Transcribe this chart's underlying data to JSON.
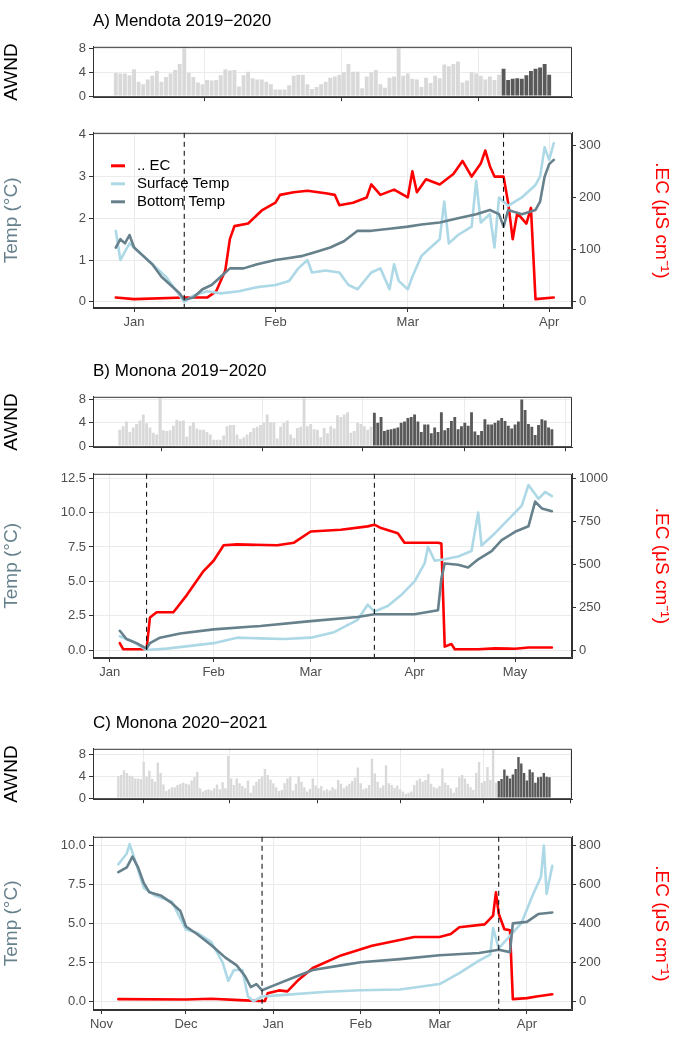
{
  "chart_data": [
    {
      "type": "bar",
      "title": "A) Mendota 2019−2020",
      "ylabel": "AWND",
      "xlim": [
        "2019-12-23",
        "2020-04-06"
      ],
      "xticks": [
        {
          "value": "2020-01-01",
          "label": null
        },
        {
          "value": "2020-02-01",
          "label": null
        },
        {
          "value": "2020-03-01",
          "label": null
        },
        {
          "value": "2020-04-01",
          "label": null
        }
      ],
      "ylim": [
        -0.2,
        8.3
      ],
      "yticks": [
        0,
        4,
        8
      ],
      "grid": true,
      "tick_labels": "y",
      "series": [
        {
          "color": "#d9d9d9",
          "x": [
            "2019-12-28",
            "2019-12-29",
            "2019-12-30",
            "2019-12-31",
            "2020-01-01",
            "2020-01-02",
            "2020-01-03",
            "2020-01-04",
            "2020-01-05",
            "2020-01-06",
            "2020-01-07",
            "2020-01-08",
            "2020-01-09",
            "2020-01-10",
            "2020-01-11",
            "2020-01-12",
            "2020-01-13",
            "2020-01-14",
            "2020-01-15",
            "2020-01-16",
            "2020-01-17",
            "2020-01-18",
            "2020-01-19",
            "2020-01-20",
            "2020-01-21",
            "2020-01-22",
            "2020-01-23",
            "2020-01-24",
            "2020-01-25",
            "2020-01-26",
            "2020-01-27",
            "2020-01-28",
            "2020-01-29",
            "2020-01-30",
            "2020-01-31",
            "2020-02-01",
            "2020-02-02",
            "2020-02-03",
            "2020-02-04",
            "2020-02-05",
            "2020-02-06",
            "2020-02-07",
            "2020-02-08",
            "2020-02-09",
            "2020-02-10",
            "2020-02-11",
            "2020-02-12",
            "2020-02-13",
            "2020-02-14",
            "2020-02-15",
            "2020-02-16",
            "2020-02-17",
            "2020-02-18",
            "2020-02-19",
            "2020-02-20",
            "2020-02-21",
            "2020-02-22",
            "2020-02-23",
            "2020-02-24",
            "2020-02-25",
            "2020-02-26",
            "2020-02-27",
            "2020-02-28",
            "2020-02-29",
            "2020-03-01",
            "2020-03-02",
            "2020-03-03",
            "2020-03-04",
            "2020-03-05",
            "2020-03-06",
            "2020-03-07",
            "2020-03-08",
            "2020-03-09",
            "2020-03-10",
            "2020-03-11",
            "2020-03-12",
            "2020-03-13",
            "2020-03-14",
            "2020-03-15",
            "2020-03-16",
            "2020-03-17",
            "2020-03-18",
            "2020-03-19",
            "2020-03-20",
            "2020-03-21"
          ],
          "values": [
            3.9,
            3.8,
            3.8,
            3.5,
            4.5,
            2.4,
            2.0,
            2.8,
            3.4,
            4.2,
            2.4,
            3.2,
            3.8,
            4.4,
            5.4,
            8.3,
            3.9,
            3.2,
            2.3,
            2.0,
            2.7,
            2.6,
            2.7,
            3.5,
            4.5,
            4.3,
            4.4,
            1.6,
            3.5,
            4.1,
            3.0,
            2.8,
            2.8,
            2.4,
            2.0,
            1.1,
            1.1,
            1.1,
            1.8,
            3.4,
            3.6,
            3.6,
            2.0,
            1.2,
            1.5,
            2.0,
            2.4,
            3.1,
            3.3,
            3.6,
            4.0,
            5.4,
            4.1,
            4.1,
            1.3,
            3.3,
            4.0,
            4.4,
            2.0,
            1.4,
            3.1,
            3.3,
            8.2,
            3.4,
            3.8,
            2.9,
            2.8,
            1.5,
            3.1,
            2.2,
            3.4,
            3.0,
            5.3,
            5.0,
            5.4,
            5.8,
            2.3,
            2.6,
            4.0,
            3.8,
            3.4,
            2.8,
            3.3,
            2.7,
            3.6
          ]
        },
        {
          "color": "#595959",
          "x": [
            "2020-03-22",
            "2020-03-23",
            "2020-03-24",
            "2020-03-25",
            "2020-03-26",
            "2020-03-27",
            "2020-03-28",
            "2020-03-29",
            "2020-03-30",
            "2020-03-31",
            "2020-04-01"
          ],
          "values": [
            4.6,
            2.7,
            2.9,
            3.0,
            2.9,
            3.5,
            4.2,
            4.6,
            4.8,
            5.4,
            3.6
          ]
        }
      ]
    },
    {
      "type": "line",
      "ylabel": "Temp (°C)",
      "y2label": ".EC (μS cm⁻¹)",
      "xlim": [
        "2019-12-23",
        "2020-04-06"
      ],
      "xticks": [
        {
          "value": "2020-01-01",
          "label": "Jan"
        },
        {
          "value": "2020-02-01",
          "label": "Feb"
        },
        {
          "value": "2020-03-01",
          "label": "Mar"
        },
        {
          "value": "2020-04-01",
          "label": "Apr"
        }
      ],
      "ylim": [
        -0.15,
        4.05
      ],
      "yticks": [
        0,
        1,
        2,
        3,
        4
      ],
      "y2lim": [
        -12,
        324
      ],
      "y2ticks": [
        0,
        100,
        200,
        300
      ],
      "grid": true,
      "legend": "top left",
      "ref_lines": [
        {
          "axis": "x",
          "value": "2020-01-12",
          "line_style": "dashed"
        },
        {
          "axis": "x",
          "value": "2020-03-22",
          "line_style": "dashed"
        }
      ],
      "series": [
        {
          "name": ".. EC",
          "color": "#ff0000",
          "axis": "y2",
          "x": [
            "2019-12-28",
            "2020-01-01",
            "2020-01-12",
            "2020-01-17",
            "2020-01-19",
            "2020-01-21",
            "2020-01-22",
            "2020-01-23",
            "2020-01-26",
            "2020-01-29",
            "2020-02-01",
            "2020-02-02",
            "2020-02-05",
            "2020-02-08",
            "2020-02-12",
            "2020-02-14",
            "2020-02-15",
            "2020-02-18",
            "2020-02-21",
            "2020-02-22",
            "2020-02-24",
            "2020-02-27",
            "2020-03-01",
            "2020-03-02",
            "2020-03-03",
            "2020-03-05",
            "2020-03-08",
            "2020-03-11",
            "2020-03-13",
            "2020-03-15",
            "2020-03-17",
            "2020-03-18",
            "2020-03-19",
            "2020-03-20",
            "2020-03-22",
            "2020-03-23",
            "2020-03-24",
            "2020-03-25",
            "2020-03-27",
            "2020-03-28",
            "2020-03-29",
            "2020-04-02"
          ],
          "values": [
            8,
            5,
            8,
            8,
            20,
            60,
            120,
            145,
            150,
            175,
            190,
            205,
            210,
            213,
            208,
            205,
            185,
            190,
            200,
            225,
            205,
            215,
            200,
            250,
            210,
            235,
            225,
            245,
            270,
            240,
            265,
            290,
            260,
            240,
            240,
            190,
            120,
            170,
            150,
            180,
            5,
            8
          ]
        },
        {
          "name": "Surface Temp",
          "color": "#add8e6",
          "x": [
            "2019-12-28",
            "2019-12-29",
            "2019-12-31",
            "2020-01-02",
            "2020-01-04",
            "2020-01-06",
            "2020-01-08",
            "2020-01-10",
            "2020-01-12",
            "2020-01-14",
            "2020-01-17",
            "2020-01-20",
            "2020-01-24",
            "2020-01-28",
            "2020-02-01",
            "2020-02-04",
            "2020-02-06",
            "2020-02-08",
            "2020-02-09",
            "2020-02-12",
            "2020-02-15",
            "2020-02-17",
            "2020-02-19",
            "2020-02-22",
            "2020-02-24",
            "2020-02-26",
            "2020-02-27",
            "2020-02-28",
            "2020-03-01",
            "2020-03-02",
            "2020-03-04",
            "2020-03-06",
            "2020-03-08",
            "2020-03-09",
            "2020-03-10",
            "2020-03-12",
            "2020-03-15",
            "2020-03-16",
            "2020-03-17",
            "2020-03-19",
            "2020-03-20",
            "2020-03-21",
            "2020-03-23",
            "2020-03-26",
            "2020-03-29",
            "2020-03-30",
            "2020-03-31",
            "2020-04-01",
            "2020-04-02"
          ],
          "values": [
            1.7,
            1.0,
            1.4,
            1.2,
            1.0,
            0.8,
            0.6,
            0.3,
            0.0,
            0.15,
            0.25,
            0.2,
            0.25,
            0.35,
            0.4,
            0.5,
            0.8,
            1.0,
            0.7,
            0.75,
            0.7,
            0.4,
            0.3,
            0.7,
            0.8,
            0.3,
            0.9,
            0.5,
            0.3,
            0.6,
            1.1,
            1.3,
            1.5,
            2.4,
            1.4,
            1.6,
            1.8,
            2.9,
            1.9,
            2.1,
            1.3,
            2.5,
            2.3,
            2.5,
            2.8,
            3.0,
            3.7,
            3.4,
            3.8
          ]
        },
        {
          "name": "Bottom Temp",
          "color": "#66818c",
          "x": [
            "2019-12-28",
            "2019-12-29",
            "2019-12-30",
            "2019-12-31",
            "2020-01-01",
            "2020-01-03",
            "2020-01-05",
            "2020-01-07",
            "2020-01-09",
            "2020-01-10",
            "2020-01-11",
            "2020-01-12",
            "2020-01-14",
            "2020-01-16",
            "2020-01-18",
            "2020-01-20",
            "2020-01-22",
            "2020-01-25",
            "2020-01-28",
            "2020-02-01",
            "2020-02-04",
            "2020-02-07",
            "2020-02-10",
            "2020-02-13",
            "2020-02-16",
            "2020-02-19",
            "2020-02-22",
            "2020-02-26",
            "2020-03-01",
            "2020-03-04",
            "2020-03-08",
            "2020-03-12",
            "2020-03-16",
            "2020-03-19",
            "2020-03-21",
            "2020-03-22",
            "2020-03-23",
            "2020-03-26",
            "2020-03-29",
            "2020-03-30",
            "2020-03-31",
            "2020-04-01",
            "2020-04-02"
          ],
          "values": [
            1.3,
            1.5,
            1.4,
            1.6,
            1.3,
            1.1,
            0.9,
            0.6,
            0.4,
            0.3,
            0.2,
            0.05,
            0.1,
            0.3,
            0.4,
            0.6,
            0.8,
            0.8,
            0.9,
            1.0,
            1.05,
            1.1,
            1.2,
            1.3,
            1.45,
            1.7,
            1.7,
            1.75,
            1.8,
            1.85,
            1.9,
            2.0,
            2.1,
            2.2,
            2.1,
            1.8,
            2.2,
            2.1,
            2.2,
            2.4,
            3.0,
            3.3,
            3.4
          ]
        }
      ]
    },
    {
      "type": "bar",
      "title": "B) Monona 2019−2020",
      "ylabel": "AWND",
      "xlim": [
        "2019-12-27",
        "2020-05-18"
      ],
      "xticks": [
        {
          "value": "2020-01-01",
          "label": null
        },
        {
          "value": "2020-02-01",
          "label": null
        },
        {
          "value": "2020-03-01",
          "label": null
        },
        {
          "value": "2020-04-01",
          "label": null
        },
        {
          "value": "2020-05-01",
          "label": null
        }
      ],
      "ylim": [
        -0.2,
        8.45
      ],
      "yticks": [
        0,
        4,
        8
      ],
      "grid": true,
      "tick_labels": "y",
      "series": [
        {
          "color": "#d9d9d9",
          "x": [
            "2020-01-04",
            "2020-01-05",
            "2020-01-06",
            "2020-01-07",
            "2020-01-08",
            "2020-01-09",
            "2020-01-10",
            "2020-01-11",
            "2020-01-12",
            "2020-01-13",
            "2020-01-14",
            "2020-01-15",
            "2020-01-16",
            "2020-01-17",
            "2020-01-18",
            "2020-01-19",
            "2020-01-20",
            "2020-01-21",
            "2020-01-22",
            "2020-01-23",
            "2020-01-24",
            "2020-01-25",
            "2020-01-26",
            "2020-01-27",
            "2020-01-28",
            "2020-01-29",
            "2020-01-30",
            "2020-01-31",
            "2020-02-01",
            "2020-02-02",
            "2020-02-03",
            "2020-02-04",
            "2020-02-05",
            "2020-02-06",
            "2020-02-07",
            "2020-02-08",
            "2020-02-09",
            "2020-02-10",
            "2020-02-11",
            "2020-02-12",
            "2020-02-13",
            "2020-02-14",
            "2020-02-15",
            "2020-02-16",
            "2020-02-17",
            "2020-02-18",
            "2020-02-19",
            "2020-02-20",
            "2020-02-21",
            "2020-02-22",
            "2020-02-23",
            "2020-02-24",
            "2020-02-25",
            "2020-02-26",
            "2020-02-27",
            "2020-02-28",
            "2020-02-29",
            "2020-03-01",
            "2020-03-02",
            "2020-03-03",
            "2020-03-04",
            "2020-03-05",
            "2020-03-06",
            "2020-03-07",
            "2020-03-08",
            "2020-03-09",
            "2020-03-10",
            "2020-03-11",
            "2020-03-12",
            "2020-03-13",
            "2020-03-14",
            "2020-03-15",
            "2020-03-16",
            "2020-03-17",
            "2020-03-18",
            "2020-03-19"
          ],
          "values": [
            2.8,
            3.4,
            4.2,
            2.4,
            3.2,
            3.8,
            4.4,
            5.4,
            3.9,
            3.2,
            2.3,
            2.0,
            8.3,
            2.7,
            2.6,
            2.7,
            3.5,
            4.5,
            4.3,
            4.4,
            1.6,
            3.5,
            4.1,
            3.0,
            2.8,
            2.8,
            2.4,
            2.0,
            1.1,
            1.1,
            1.1,
            1.8,
            3.4,
            3.6,
            3.6,
            2.0,
            1.2,
            1.5,
            2.0,
            2.4,
            3.1,
            3.3,
            3.6,
            4.0,
            5.4,
            4.1,
            4.1,
            1.3,
            3.3,
            4.0,
            4.4,
            2.0,
            1.4,
            3.1,
            3.3,
            8.2,
            3.4,
            3.8,
            2.9,
            2.8,
            1.5,
            3.1,
            2.2,
            3.4,
            3.0,
            5.3,
            5.0,
            5.4,
            5.8,
            2.3,
            2.6,
            4.0,
            3.8,
            3.4,
            2.8,
            3.3
          ]
        },
        {
          "color": "#595959",
          "x": [
            "2020-03-20",
            "2020-03-21",
            "2020-03-22",
            "2020-03-23",
            "2020-03-24",
            "2020-03-25",
            "2020-03-26",
            "2020-03-27",
            "2020-03-28",
            "2020-03-29",
            "2020-03-30",
            "2020-03-31",
            "2020-04-01",
            "2020-04-02",
            "2020-04-03",
            "2020-04-04",
            "2020-04-05",
            "2020-04-06",
            "2020-04-07",
            "2020-04-08",
            "2020-04-09",
            "2020-04-10",
            "2020-04-11",
            "2020-04-12",
            "2020-04-13",
            "2020-04-14",
            "2020-04-15",
            "2020-04-16",
            "2020-04-17",
            "2020-04-18",
            "2020-04-19",
            "2020-04-20",
            "2020-04-21",
            "2020-04-22",
            "2020-04-23",
            "2020-04-24",
            "2020-04-25",
            "2020-04-26",
            "2020-04-27",
            "2020-04-28",
            "2020-04-29",
            "2020-04-30",
            "2020-05-01",
            "2020-05-02",
            "2020-05-03",
            "2020-05-04",
            "2020-05-05",
            "2020-05-06",
            "2020-05-07",
            "2020-05-08",
            "2020-05-09",
            "2020-05-10",
            "2020-05-11",
            "2020-05-12"
          ],
          "values": [
            5.7,
            4.0,
            5.0,
            2.6,
            2.8,
            2.9,
            3.0,
            3.2,
            4.0,
            4.2,
            4.8,
            5.0,
            5.4,
            4.2,
            2.4,
            3.7,
            3.7,
            2.2,
            3.2,
            2.4,
            5.8,
            2.7,
            3.1,
            4.3,
            5.0,
            2.9,
            3.4,
            4.0,
            3.5,
            5.8,
            2.5,
            1.9,
            2.6,
            4.6,
            3.7,
            3.7,
            4.0,
            4.4,
            4.8,
            4.3,
            3.5,
            3.0,
            3.7,
            4.2,
            8.0,
            6.2,
            3.8,
            3.3,
            1.9,
            3.6,
            4.6,
            4.4,
            3.2,
            2.9
          ]
        }
      ]
    },
    {
      "type": "line",
      "ylabel": "Temp (°C)",
      "y2label": ".EC (μS cm⁻¹)",
      "xlim": [
        "2019-12-27",
        "2020-05-18"
      ],
      "xticks": [
        {
          "value": "2020-01-01",
          "label": "Jan"
        },
        {
          "value": "2020-02-01",
          "label": "Feb"
        },
        {
          "value": "2020-03-01",
          "label": "Mar"
        },
        {
          "value": "2020-04-01",
          "label": "Apr"
        },
        {
          "value": "2020-05-01",
          "label": "May"
        }
      ],
      "ylim": [
        -0.58,
        12.82
      ],
      "yticks": [
        {
          "value": 0,
          "label": "0.0"
        },
        {
          "value": 2.5,
          "label": "2.5"
        },
        {
          "value": 5,
          "label": "5.0"
        },
        {
          "value": 7.5,
          "label": "7.5"
        },
        {
          "value": 10,
          "label": "10.0"
        },
        {
          "value": 12.5,
          "label": "12.5"
        }
      ],
      "y2lim": [
        -46,
        1026
      ],
      "y2ticks": [
        0,
        250,
        500,
        750,
        1000
      ],
      "grid": true,
      "ref_lines": [
        {
          "axis": "x",
          "value": "2020-01-12",
          "line_style": "dashed"
        },
        {
          "axis": "x",
          "value": "2020-03-20",
          "line_style": "dashed"
        }
      ],
      "series": [
        {
          "color": "#ff0000",
          "axis": "y2",
          "x": [
            "2020-01-04",
            "2020-01-05",
            "2020-01-12",
            "2020-01-13",
            "2020-01-15",
            "2020-01-20",
            "2020-01-24",
            "2020-01-29",
            "2020-02-01",
            "2020-02-04",
            "2020-02-08",
            "2020-02-20",
            "2020-02-25",
            "2020-03-01",
            "2020-03-10",
            "2020-03-18",
            "2020-03-20",
            "2020-03-22",
            "2020-03-27",
            "2020-03-29",
            "2020-04-08",
            "2020-04-09",
            "2020-04-10",
            "2020-04-12",
            "2020-04-13",
            "2020-04-20",
            "2020-04-25",
            "2020-05-01",
            "2020-05-05",
            "2020-05-12"
          ],
          "values": [
            40,
            5,
            5,
            190,
            220,
            220,
            320,
            460,
            520,
            610,
            615,
            610,
            625,
            690,
            700,
            720,
            730,
            710,
            680,
            625,
            625,
            620,
            20,
            35,
            5,
            5,
            10,
            8,
            15,
            15
          ]
        },
        {
          "color": "#add8e6",
          "x": [
            "2020-01-04",
            "2020-01-08",
            "2020-01-12",
            "2020-01-18",
            "2020-01-25",
            "2020-02-01",
            "2020-02-08",
            "2020-02-15",
            "2020-02-22",
            "2020-03-01",
            "2020-03-08",
            "2020-03-15",
            "2020-03-18",
            "2020-03-20",
            "2020-03-24",
            "2020-03-28",
            "2020-04-01",
            "2020-04-04",
            "2020-04-05",
            "2020-04-07",
            "2020-04-10",
            "2020-04-14",
            "2020-04-18",
            "2020-04-20",
            "2020-04-21",
            "2020-04-25",
            "2020-04-29",
            "2020-05-03",
            "2020-05-05",
            "2020-05-08",
            "2020-05-10",
            "2020-05-12"
          ],
          "values": [
            1.0,
            0.6,
            0.0,
            0.1,
            0.3,
            0.5,
            0.9,
            0.85,
            0.8,
            0.9,
            1.3,
            2.2,
            3.3,
            2.8,
            3.2,
            4.0,
            5.0,
            6.3,
            7.5,
            6.5,
            6.6,
            6.8,
            7.2,
            10.0,
            7.6,
            8.5,
            9.5,
            10.5,
            12.0,
            11.0,
            11.5,
            11.2
          ]
        },
        {
          "color": "#66818c",
          "x": [
            "2020-01-04",
            "2020-01-06",
            "2020-01-09",
            "2020-01-12",
            "2020-01-13",
            "2020-01-16",
            "2020-01-22",
            "2020-02-01",
            "2020-02-15",
            "2020-03-01",
            "2020-03-15",
            "2020-03-20",
            "2020-04-01",
            "2020-04-08",
            "2020-04-09",
            "2020-04-10",
            "2020-04-14",
            "2020-04-17",
            "2020-04-20",
            "2020-04-24",
            "2020-04-27",
            "2020-05-01",
            "2020-05-05",
            "2020-05-07",
            "2020-05-09",
            "2020-05-12"
          ],
          "values": [
            1.4,
            0.8,
            0.5,
            0.1,
            0.5,
            0.9,
            1.2,
            1.5,
            1.75,
            2.1,
            2.4,
            2.6,
            2.6,
            2.9,
            5.2,
            6.3,
            6.2,
            6.0,
            6.6,
            7.2,
            8.0,
            8.6,
            9.0,
            10.8,
            10.3,
            10.1
          ]
        }
      ]
    },
    {
      "type": "bar",
      "title": "C) Monona 2020−2021",
      "ylabel": "AWND",
      "xlim": [
        "2020-10-29",
        "2021-04-17"
      ],
      "xticks": [
        {
          "value": "2020-11-01",
          "label": null
        },
        {
          "value": "2020-12-01",
          "label": null
        },
        {
          "value": "2021-01-01",
          "label": null
        },
        {
          "value": "2021-02-01",
          "label": null
        },
        {
          "value": "2021-03-01",
          "label": null
        },
        {
          "value": "2021-04-01",
          "label": null
        }
      ],
      "ylim": [
        -0.2,
        9.0
      ],
      "yticks": [
        0,
        4,
        8
      ],
      "grid": true,
      "tick_labels": "y",
      "series": [
        {
          "color": "#d9d9d9",
          "x": [
            "2020-11-07",
            "2020-11-08",
            "2020-11-09",
            "2020-11-10",
            "2020-11-11",
            "2020-11-12",
            "2020-11-13",
            "2020-11-14",
            "2020-11-15",
            "2020-11-16",
            "2020-11-17",
            "2020-11-18",
            "2020-11-19",
            "2020-11-20",
            "2020-11-21",
            "2020-11-22",
            "2020-11-23",
            "2020-11-24",
            "2020-11-25",
            "2020-11-26",
            "2020-11-27",
            "2020-11-28",
            "2020-11-29",
            "2020-11-30",
            "2020-12-01",
            "2020-12-02",
            "2020-12-03",
            "2020-12-04",
            "2020-12-05",
            "2020-12-06",
            "2020-12-07",
            "2020-12-08",
            "2020-12-09",
            "2020-12-10",
            "2020-12-11",
            "2020-12-12",
            "2020-12-13",
            "2020-12-14",
            "2020-12-15",
            "2020-12-16",
            "2020-12-17",
            "2020-12-18",
            "2020-12-19",
            "2020-12-20",
            "2020-12-21",
            "2020-12-22",
            "2020-12-23",
            "2020-12-24",
            "2020-12-25",
            "2020-12-26",
            "2020-12-27",
            "2020-12-28",
            "2020-12-29",
            "2020-12-30",
            "2020-12-31",
            "2021-01-01",
            "2021-01-02",
            "2021-01-03",
            "2021-01-04",
            "2021-01-05",
            "2021-01-06",
            "2021-01-07",
            "2021-01-08",
            "2021-01-09",
            "2021-01-10",
            "2021-01-11",
            "2021-01-12",
            "2021-01-13",
            "2021-01-14",
            "2021-01-15",
            "2021-01-16",
            "2021-01-17",
            "2021-01-18",
            "2021-01-19",
            "2021-01-20",
            "2021-01-21",
            "2021-01-22",
            "2021-01-23",
            "2021-01-24",
            "2021-01-25",
            "2021-01-26",
            "2021-01-27",
            "2021-01-28",
            "2021-01-29",
            "2021-01-30",
            "2021-01-31",
            "2021-02-01",
            "2021-02-02",
            "2021-02-03",
            "2021-02-04",
            "2021-02-05",
            "2021-02-06",
            "2021-02-07",
            "2021-02-08",
            "2021-02-09",
            "2021-02-10",
            "2021-02-11",
            "2021-02-12",
            "2021-02-13",
            "2021-02-14",
            "2021-02-15",
            "2021-02-16",
            "2021-02-17",
            "2021-02-18",
            "2021-02-19",
            "2021-02-20",
            "2021-02-21",
            "2021-02-22",
            "2021-02-23",
            "2021-02-24",
            "2021-02-25",
            "2021-02-26",
            "2021-02-27",
            "2021-02-28",
            "2021-03-01",
            "2021-03-02",
            "2021-03-03",
            "2021-03-04",
            "2021-03-05",
            "2021-03-06",
            "2021-03-07",
            "2021-03-08",
            "2021-03-09",
            "2021-03-10",
            "2021-03-11",
            "2021-03-12",
            "2021-03-13",
            "2021-03-14",
            "2021-03-15",
            "2021-03-16",
            "2021-03-17",
            "2021-03-18",
            "2021-03-19",
            "2021-03-20",
            "2021-03-21"
          ],
          "values": [
            4.0,
            4.2,
            5.1,
            4.6,
            4.1,
            4.0,
            3.6,
            3.6,
            3.5,
            6.6,
            3.9,
            5.0,
            3.5,
            3.0,
            6.5,
            4.6,
            2.5,
            1.3,
            1.6,
            2.0,
            2.0,
            2.4,
            2.6,
            2.8,
            2.6,
            2.5,
            3.2,
            3.8,
            4.8,
            1.8,
            1.2,
            1.5,
            1.6,
            1.4,
            1.8,
            2.5,
            1.6,
            2.9,
            1.8,
            7.7,
            3.6,
            2.4,
            3.6,
            2.7,
            2.2,
            1.8,
            3.2,
            1.0,
            2.3,
            3.0,
            3.5,
            4.0,
            5.3,
            4.2,
            3.4,
            2.7,
            2.0,
            1.3,
            1.5,
            2.7,
            3.6,
            3.9,
            1.4,
            2.6,
            4.0,
            3.0,
            2.0,
            1.2,
            1.7,
            3.6,
            2.3,
            1.8,
            2.2,
            1.4,
            1.6,
            1.4,
            2.0,
            1.6,
            3.3,
            2.6,
            1.8,
            2.2,
            2.6,
            3.1,
            3.7,
            5.6,
            2.7,
            1.6,
            1.8,
            2.4,
            7.2,
            4.5,
            3.0,
            1.9,
            2.3,
            6.0,
            2.7,
            2.4,
            1.9,
            2.3,
            1.6,
            1.2,
            0.8,
            1.0,
            1.2,
            2.4,
            3.2,
            3.6,
            3.0,
            3.3,
            4.4,
            2.6,
            2.0,
            1.8,
            2.2,
            5.4,
            2.8,
            2.4,
            1.8,
            1.0,
            2.0,
            3.8,
            4.2,
            3.6,
            2.6,
            2.0,
            1.5,
            4.6,
            6.6,
            2.8,
            3.1,
            5.7,
            3.3,
            8.8,
            2.8
          ]
        },
        {
          "color": "#595959",
          "x": [
            "2021-03-22",
            "2021-03-23",
            "2021-03-24",
            "2021-03-25",
            "2021-03-26",
            "2021-03-27",
            "2021-03-28",
            "2021-03-29",
            "2021-03-30",
            "2021-03-31",
            "2021-04-01",
            "2021-04-02",
            "2021-04-03",
            "2021-04-04",
            "2021-04-05",
            "2021-04-06",
            "2021-04-07",
            "2021-04-08",
            "2021-04-09"
          ],
          "values": [
            3.1,
            3.5,
            5.2,
            4.1,
            3.6,
            4.3,
            5.3,
            7.5,
            6.3,
            4.6,
            3.2,
            5.2,
            4.7,
            2.8,
            3.8,
            3.9,
            4.6,
            3.9,
            3.8
          ]
        }
      ]
    },
    {
      "type": "line",
      "ylabel": "Temp (°C)",
      "y2label": ".EC (μS cm⁻¹)",
      "xlim": [
        "2020-10-29",
        "2021-04-17"
      ],
      "xticks": [
        {
          "value": "2020-11-01",
          "label": "Nov"
        },
        {
          "value": "2020-12-01",
          "label": "Dec"
        },
        {
          "value": "2021-01-01",
          "label": "Jan"
        },
        {
          "value": "2021-02-01",
          "label": "Feb"
        },
        {
          "value": "2021-03-01",
          "label": "Mar"
        },
        {
          "value": "2021-04-01",
          "label": "Apr"
        }
      ],
      "ylim": [
        -0.57,
        10.57
      ],
      "yticks": [
        {
          "value": 0,
          "label": "0.0"
        },
        {
          "value": 2.5,
          "label": "2.5"
        },
        {
          "value": 5,
          "label": "5.0"
        },
        {
          "value": 7.5,
          "label": "7.5"
        },
        {
          "value": 10,
          "label": "10.0"
        }
      ],
      "y2lim": [
        -46,
        846
      ],
      "y2ticks": [
        0,
        200,
        400,
        600,
        800
      ],
      "grid": true,
      "ref_lines": [
        {
          "axis": "x",
          "value": "2020-12-28",
          "line_style": "dashed"
        },
        {
          "axis": "x",
          "value": "2021-03-22",
          "line_style": "dashed"
        }
      ],
      "series": [
        {
          "color": "#ff0000",
          "axis": "y2",
          "x": [
            "2020-11-07",
            "2020-12-01",
            "2020-12-10",
            "2020-12-20",
            "2020-12-27",
            "2020-12-29",
            "2020-12-30",
            "2021-01-03",
            "2021-01-06",
            "2021-01-10",
            "2021-01-15",
            "2021-01-25",
            "2021-02-05",
            "2021-02-20",
            "2021-03-01",
            "2021-03-05",
            "2021-03-08",
            "2021-03-17",
            "2021-03-20",
            "2021-03-21",
            "2021-03-22",
            "2021-03-24",
            "2021-03-26",
            "2021-03-27",
            "2021-04-01",
            "2021-04-05",
            "2021-04-10"
          ],
          "values": [
            10,
            8,
            12,
            5,
            0,
            0,
            40,
            55,
            50,
            110,
            170,
            235,
            285,
            330,
            330,
            345,
            380,
            395,
            440,
            560,
            450,
            370,
            365,
            10,
            15,
            25,
            35
          ]
        },
        {
          "color": "#add8e6",
          "x": [
            "2020-11-07",
            "2020-11-10",
            "2020-11-11",
            "2020-11-13",
            "2020-11-16",
            "2020-11-20",
            "2020-11-26",
            "2020-12-01",
            "2020-12-05",
            "2020-12-10",
            "2020-12-14",
            "2020-12-16",
            "2020-12-18",
            "2020-12-21",
            "2020-12-23",
            "2020-12-25",
            "2020-12-28",
            "2021-01-05",
            "2021-01-20",
            "2021-02-01",
            "2021-02-15",
            "2021-03-01",
            "2021-03-08",
            "2021-03-15",
            "2021-03-19",
            "2021-03-20",
            "2021-03-22",
            "2021-03-27",
            "2021-03-30",
            "2021-04-03",
            "2021-04-06",
            "2021-04-07",
            "2021-04-08",
            "2021-04-10"
          ],
          "values": [
            8.8,
            9.5,
            10.1,
            9.0,
            7.3,
            6.8,
            6.4,
            4.6,
            4.4,
            3.8,
            2.5,
            1.3,
            2.0,
            2.0,
            0.3,
            0.0,
            0.3,
            0.4,
            0.6,
            0.7,
            0.75,
            1.1,
            1.8,
            2.6,
            3.0,
            4.7,
            3.4,
            4.4,
            5.0,
            6.8,
            8.0,
            10.0,
            6.9,
            8.7
          ]
        },
        {
          "color": "#66818c",
          "x": [
            "2020-11-07",
            "2020-11-10",
            "2020-11-12",
            "2020-11-14",
            "2020-11-16",
            "2020-11-18",
            "2020-11-22",
            "2020-11-26",
            "2020-11-29",
            "2020-12-01",
            "2020-12-05",
            "2020-12-10",
            "2020-12-15",
            "2020-12-19",
            "2020-12-22",
            "2020-12-24",
            "2020-12-26",
            "2020-12-28",
            "2021-01-01",
            "2021-01-08",
            "2021-01-15",
            "2021-01-25",
            "2021-02-01",
            "2021-02-15",
            "2021-03-01",
            "2021-03-15",
            "2021-03-22",
            "2021-03-26",
            "2021-03-27",
            "2021-04-01",
            "2021-04-05",
            "2021-04-10"
          ],
          "values": [
            8.3,
            8.6,
            9.3,
            8.6,
            7.6,
            7.0,
            6.8,
            6.3,
            5.8,
            4.8,
            4.3,
            3.6,
            2.8,
            2.3,
            1.6,
            0.9,
            1.1,
            0.7,
            1.0,
            1.5,
            2.0,
            2.3,
            2.5,
            2.7,
            2.95,
            3.1,
            3.3,
            3.15,
            5.0,
            5.1,
            5.6,
            5.7
          ]
        }
      ]
    }
  ]
}
